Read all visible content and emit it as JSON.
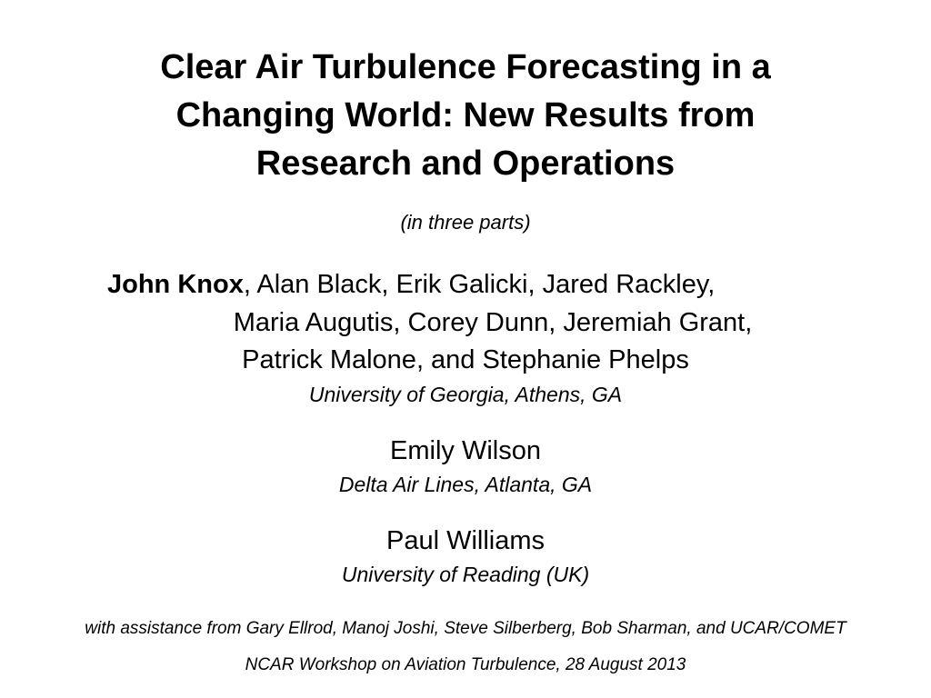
{
  "title": [
    "Clear Air Turbulence Forecasting in a",
    "Changing World: New Results from",
    "Research and Operations"
  ],
  "subtitle": "(in three parts)",
  "lead_author": "John Knox",
  "authors": [
    ", Alan Black, Erik Galicki, Jared Rackley,",
    "Maria Augutis, Corey Dunn, Jeremiah Grant,",
    "Patrick Malone, and Stephanie Phelps"
  ],
  "affiliation_1": "University of Georgia, Athens, GA",
  "author_2": "Emily Wilson",
  "affiliation_2": "Delta Air Lines, Atlanta, GA",
  "author_3": "Paul Williams",
  "affiliation_3": "University of Reading (UK)",
  "assistance": "with assistance from Gary Ellrod, Manoj Joshi, Steve Silberberg, Bob Sharman, and UCAR/COMET",
  "venue": "NCAR Workshop on Aviation Turbulence, 28 August 2013"
}
